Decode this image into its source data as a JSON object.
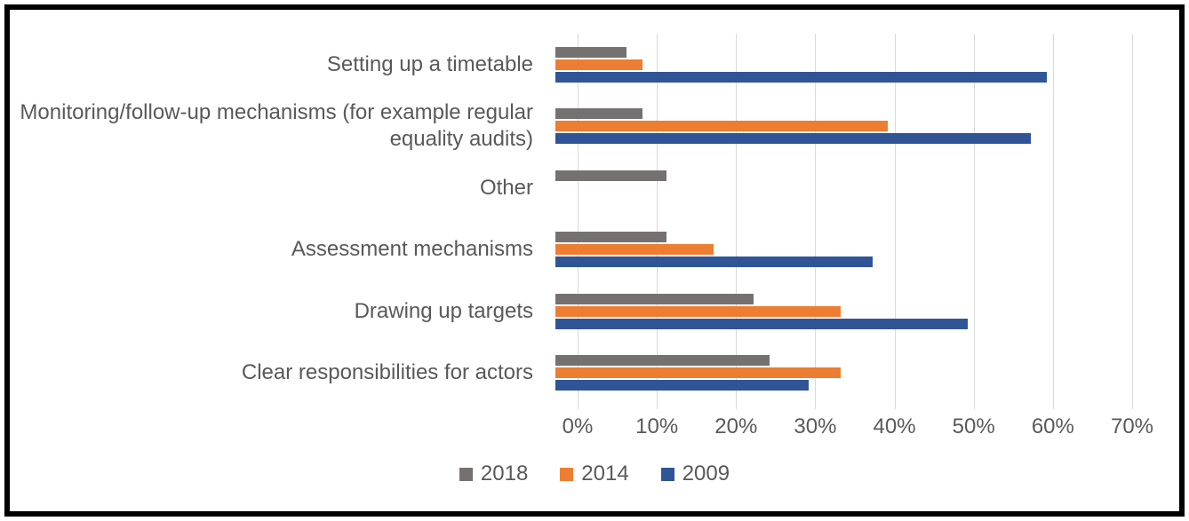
{
  "chart_data": {
    "type": "bar",
    "orientation": "horizontal",
    "title": "",
    "xlabel": "",
    "ylabel": "",
    "categories": [
      "Setting up a timetable",
      "Monitoring/follow-up mechanisms (for example regular equality audits)",
      "Other",
      "Assessment mechanisms",
      "Drawing up targets",
      "Clear responsibilities for actors"
    ],
    "series": [
      {
        "name": "2018",
        "color": "#767171",
        "values": [
          9,
          11,
          14,
          14,
          25,
          27
        ]
      },
      {
        "name": "2014",
        "color": "#ED7D31",
        "values": [
          11,
          42,
          0,
          20,
          36,
          36
        ]
      },
      {
        "name": "2009",
        "color": "#2F5597",
        "values": [
          62,
          60,
          0,
          40,
          52,
          32
        ]
      }
    ],
    "x_axis": {
      "min": 0,
      "max": 70,
      "step": 10,
      "unit": "%",
      "tick_labels": [
        "0%",
        "10%",
        "20%",
        "30%",
        "40%",
        "50%",
        "60%",
        "70%"
      ]
    },
    "grid": true,
    "legend_position": "bottom",
    "legend_labels": [
      "2018",
      "2014",
      "2009"
    ]
  },
  "colors": {
    "frame_border": "#000000",
    "background": "#ffffff",
    "gridline": "#d9d9d9",
    "axis_text": "#595959",
    "category_text": "#595959",
    "legend_text": "#595959"
  }
}
